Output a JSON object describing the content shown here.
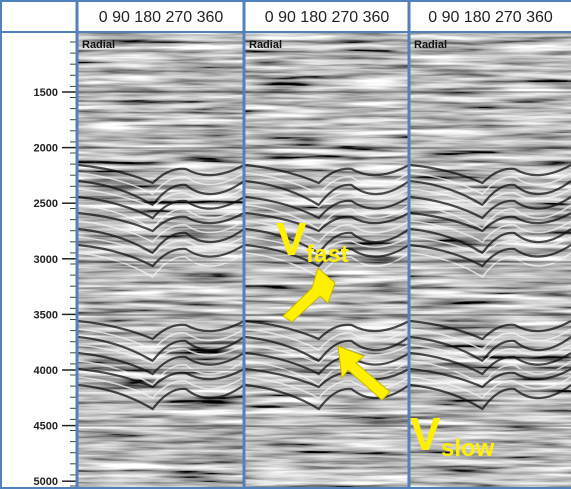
{
  "header": {
    "panels": [
      "0 90 180 270 360",
      "0 90 180 270 360",
      "0 90 180 270 360"
    ]
  },
  "panel_labels": [
    "Radial",
    "Radial",
    "Radial"
  ],
  "axis": {
    "ticks": [
      "1500",
      "2000",
      "2500",
      "3000",
      "3500",
      "4000",
      "4500",
      "5000"
    ]
  },
  "annotations": [
    {
      "main": "V",
      "sub": "fast"
    },
    {
      "main": "V",
      "sub": "slow"
    }
  ]
}
